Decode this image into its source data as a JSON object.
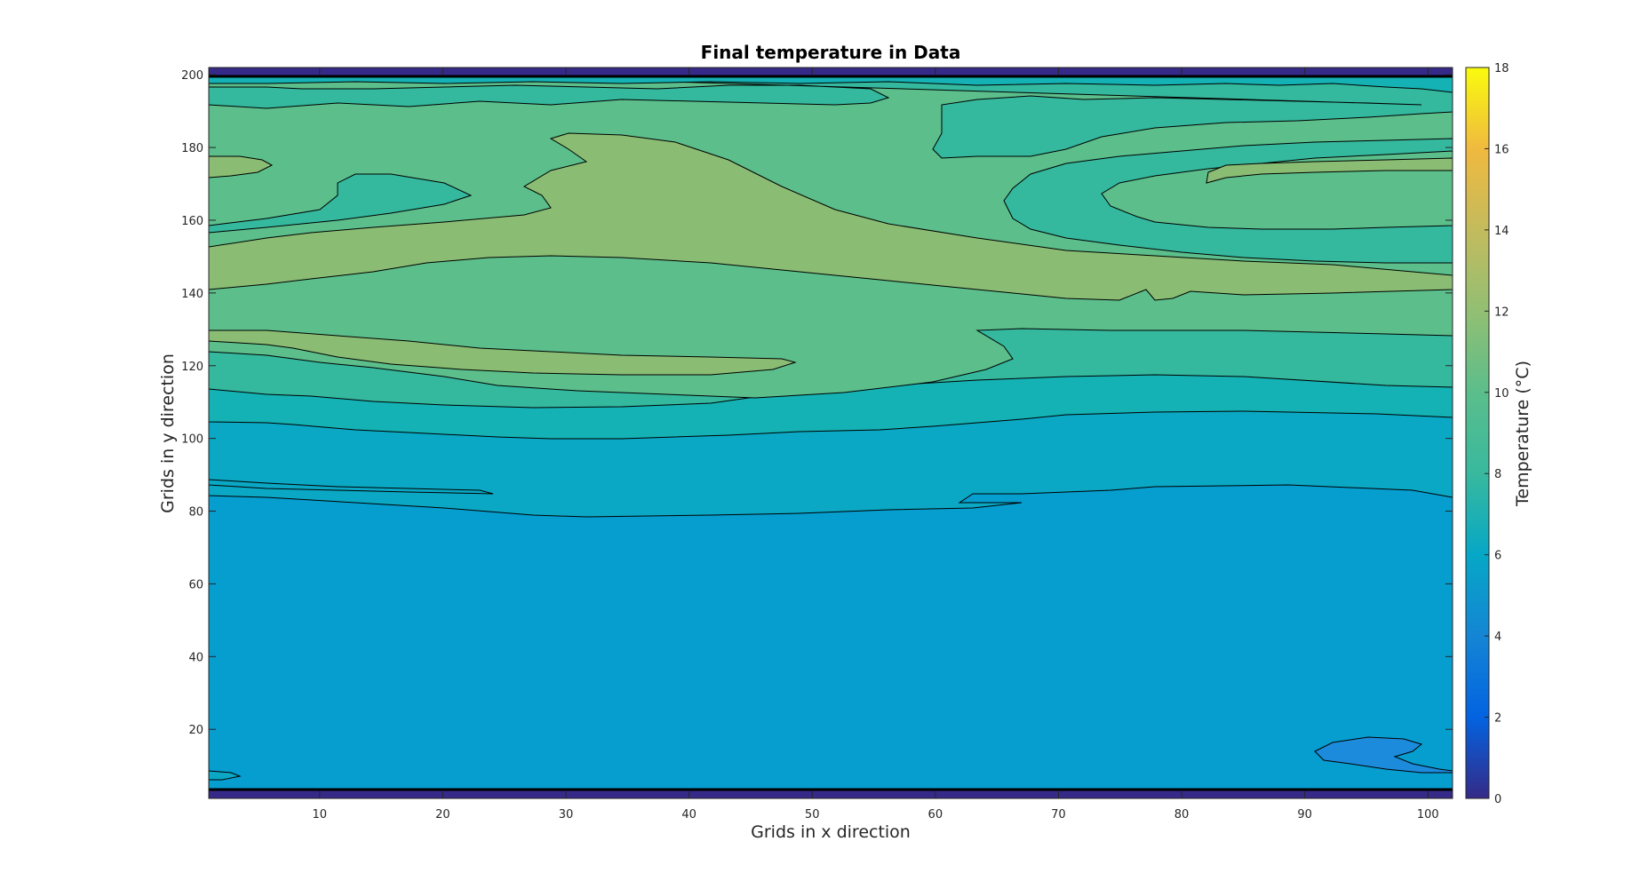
{
  "chart_data": {
    "type": "heatmap",
    "subtype": "filled-contour",
    "title": "Final temperature in Data",
    "xlabel": "Grids in x direction",
    "ylabel": "Grids in y direction",
    "colorbar_label": "Temperature (°C)",
    "xlim": [
      1,
      102
    ],
    "ylim": [
      1,
      202
    ],
    "xticks": [
      10,
      20,
      30,
      40,
      50,
      60,
      70,
      80,
      90,
      100
    ],
    "yticks": [
      20,
      40,
      60,
      80,
      100,
      120,
      140,
      160,
      180,
      200
    ],
    "colorbar_range": [
      0,
      18
    ],
    "colorbar_ticks": [
      0,
      2,
      4,
      6,
      8,
      10,
      12,
      14,
      16,
      18
    ],
    "colormap": "parula",
    "contour_levels": [
      0,
      1,
      2,
      3,
      4,
      5,
      6,
      7,
      8,
      9,
      10,
      11,
      12,
      13,
      14,
      15,
      16,
      17,
      18
    ],
    "grid": false,
    "regions": [
      {
        "name": "bottom boundary band",
        "value": 0.5,
        "color": "#352a87",
        "y_range": [
          1,
          3
        ]
      },
      {
        "name": "main lower body",
        "value": 5.5,
        "color": "#069dcf"
      },
      {
        "name": "low patch near x=95",
        "value": 4.5,
        "color": "#1d8bdc",
        "x_range": [
          90,
          101
        ],
        "y_range": [
          9,
          17
        ]
      },
      {
        "name": "band y≈85-100",
        "value": 6.5,
        "color": "#0aa8c4"
      },
      {
        "name": "band y≈100-115",
        "value": 7.5,
        "color": "#14b2b4"
      },
      {
        "name": "band y≈112-130",
        "value": 8.5,
        "color": "#34b89e"
      },
      {
        "name": "band y≈125-150",
        "value": 9.5,
        "color": "#5bbe8b"
      },
      {
        "name": "band y≈140-183",
        "value": 10.5,
        "color": "#8abd73"
      },
      {
        "name": "warm tongue left",
        "value": 10.5,
        "color": "#8abd73",
        "x_range": [
          1,
          49
        ],
        "y_range": [
          118,
          130
        ]
      },
      {
        "name": "upper band y≈180-196",
        "value": 9.5,
        "color": "#5bbe8b"
      },
      {
        "name": "upper right gyre",
        "value": 8.5,
        "color": "#34b89e",
        "x_range": [
          66,
          101
        ],
        "y_range": [
          150,
          185
        ]
      },
      {
        "name": "top band y≈192-199",
        "value": 7.5,
        "color": "#14b2b4"
      },
      {
        "name": "top boundary band",
        "value": 0.5,
        "color": "#352a87",
        "y_range": [
          200,
          202
        ]
      }
    ]
  }
}
